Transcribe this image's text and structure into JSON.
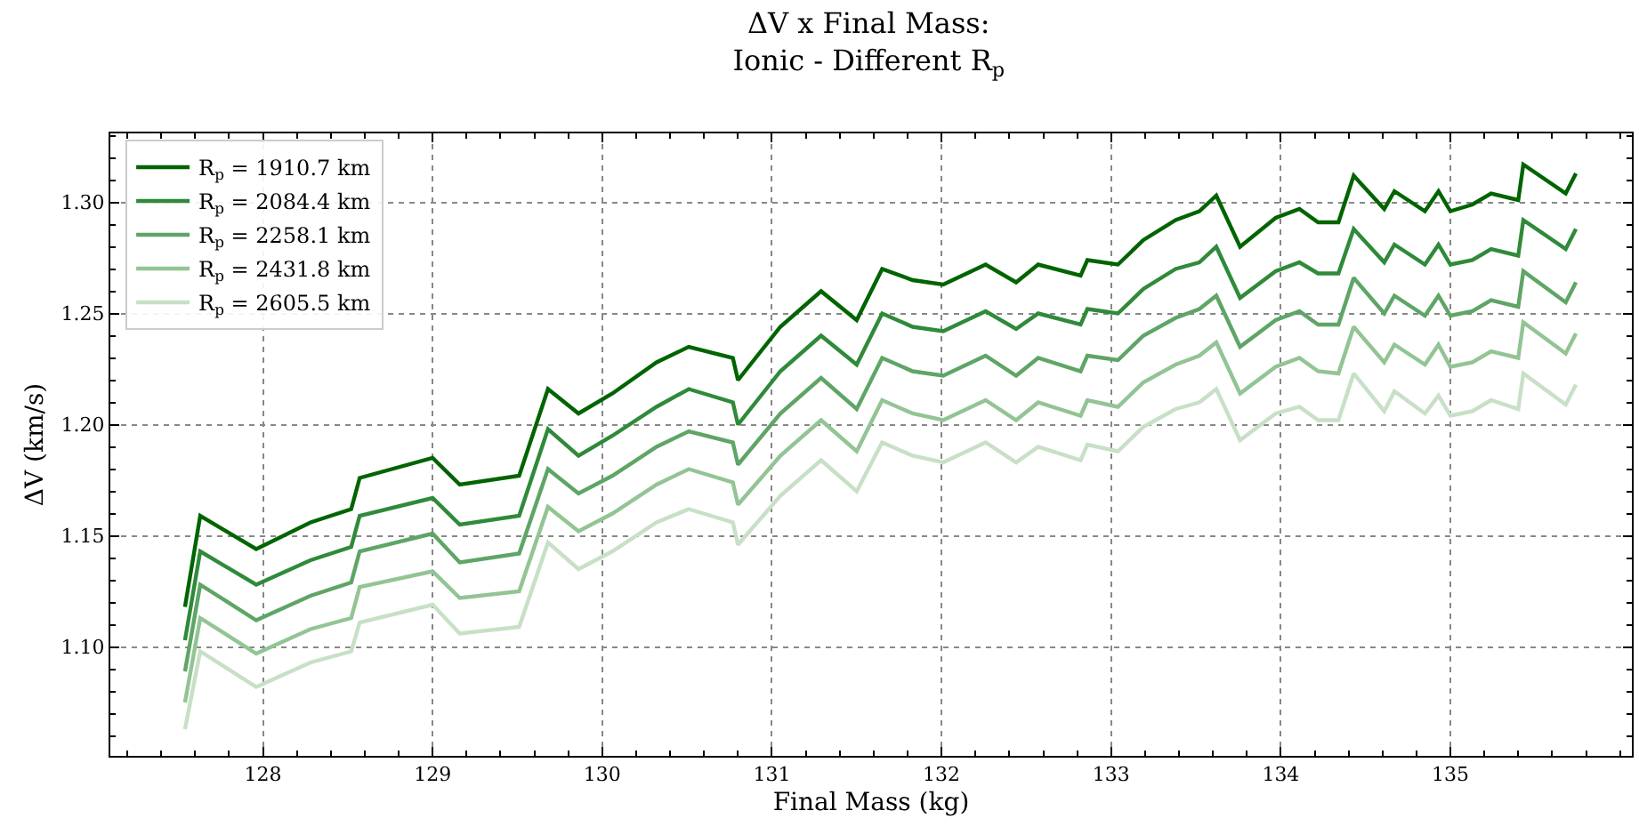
{
  "chart_data": {
    "type": "line",
    "title": "ΔV x Final Mass:\nIonic - Different R$_{p}$",
    "xlabel": "Final Mass (kg)",
    "ylabel": "ΔV (km/s)",
    "x": [
      127.54,
      127.63,
      127.96,
      128.28,
      128.52,
      128.57,
      129.0,
      129.16,
      129.51,
      129.68,
      129.86,
      130.06,
      130.32,
      130.51,
      130.77,
      130.8,
      131.05,
      131.29,
      131.5,
      131.65,
      131.83,
      132.01,
      132.26,
      132.44,
      132.57,
      132.82,
      132.86,
      133.04,
      133.19,
      133.38,
      133.52,
      133.62,
      133.76,
      133.97,
      134.11,
      134.22,
      134.34,
      134.43,
      134.61,
      134.67,
      134.85,
      134.93,
      135.0,
      135.13,
      135.24,
      135.4,
      135.43,
      135.68,
      135.74
    ],
    "series": [
      {
        "name": "R$_{p}$ = 1910.7 km",
        "color": "#006400",
        "values": [
          1.118,
          1.159,
          1.144,
          1.156,
          1.162,
          1.176,
          1.185,
          1.173,
          1.177,
          1.216,
          1.205,
          1.214,
          1.228,
          1.235,
          1.23,
          1.22,
          1.244,
          1.26,
          1.247,
          1.27,
          1.265,
          1.263,
          1.272,
          1.264,
          1.272,
          1.267,
          1.274,
          1.272,
          1.283,
          1.292,
          1.296,
          1.303,
          1.28,
          1.293,
          1.297,
          1.291,
          1.291,
          1.312,
          1.297,
          1.305,
          1.296,
          1.305,
          1.296,
          1.299,
          1.304,
          1.301,
          1.317,
          1.304,
          1.313
        ]
      },
      {
        "name": "R$_{p}$ = 2084.4 km",
        "color": "#2f8a3a",
        "values": [
          1.103,
          1.143,
          1.128,
          1.139,
          1.145,
          1.159,
          1.167,
          1.155,
          1.159,
          1.198,
          1.186,
          1.195,
          1.208,
          1.216,
          1.21,
          1.2,
          1.224,
          1.24,
          1.227,
          1.25,
          1.244,
          1.242,
          1.251,
          1.243,
          1.25,
          1.245,
          1.252,
          1.25,
          1.261,
          1.27,
          1.273,
          1.28,
          1.257,
          1.269,
          1.273,
          1.268,
          1.268,
          1.288,
          1.273,
          1.281,
          1.272,
          1.281,
          1.272,
          1.274,
          1.279,
          1.276,
          1.292,
          1.279,
          1.288
        ]
      },
      {
        "name": "R$_{p}$ = 2258.1 km",
        "color": "#5ea566",
        "values": [
          1.089,
          1.128,
          1.112,
          1.123,
          1.129,
          1.143,
          1.151,
          1.138,
          1.142,
          1.18,
          1.169,
          1.177,
          1.19,
          1.197,
          1.192,
          1.182,
          1.205,
          1.221,
          1.207,
          1.23,
          1.224,
          1.222,
          1.231,
          1.222,
          1.23,
          1.224,
          1.231,
          1.229,
          1.24,
          1.248,
          1.252,
          1.258,
          1.235,
          1.247,
          1.251,
          1.245,
          1.245,
          1.266,
          1.25,
          1.258,
          1.249,
          1.258,
          1.249,
          1.251,
          1.256,
          1.253,
          1.269,
          1.255,
          1.264
        ]
      },
      {
        "name": "R$_{p}$ = 2431.8 km",
        "color": "#93c494",
        "values": [
          1.075,
          1.113,
          1.097,
          1.108,
          1.113,
          1.127,
          1.134,
          1.122,
          1.125,
          1.163,
          1.152,
          1.16,
          1.173,
          1.18,
          1.174,
          1.164,
          1.186,
          1.202,
          1.188,
          1.211,
          1.205,
          1.202,
          1.211,
          1.202,
          1.21,
          1.204,
          1.211,
          1.208,
          1.219,
          1.227,
          1.231,
          1.237,
          1.214,
          1.226,
          1.23,
          1.224,
          1.223,
          1.244,
          1.228,
          1.236,
          1.227,
          1.236,
          1.226,
          1.228,
          1.233,
          1.23,
          1.246,
          1.232,
          1.241
        ]
      },
      {
        "name": "R$_{p}$ = 2605.5 km",
        "color": "#c7e0c6",
        "values": [
          1.063,
          1.098,
          1.082,
          1.093,
          1.098,
          1.111,
          1.119,
          1.106,
          1.109,
          1.147,
          1.135,
          1.143,
          1.156,
          1.162,
          1.156,
          1.146,
          1.168,
          1.184,
          1.17,
          1.192,
          1.186,
          1.183,
          1.192,
          1.183,
          1.19,
          1.184,
          1.191,
          1.188,
          1.199,
          1.207,
          1.21,
          1.216,
          1.193,
          1.205,
          1.208,
          1.202,
          1.202,
          1.223,
          1.206,
          1.215,
          1.205,
          1.213,
          1.204,
          1.206,
          1.211,
          1.207,
          1.223,
          1.209,
          1.218
        ]
      }
    ],
    "xlim": [
      127.1,
      136.07
    ],
    "ylim": [
      1.051,
      1.331
    ],
    "xticks": [
      128,
      129,
      130,
      131,
      132,
      133,
      134,
      135
    ],
    "yticks": [
      {
        "value": 1.1,
        "label": "1.10"
      },
      1.15,
      {
        "value": 1.2,
        "label": "1.20"
      },
      1.25,
      {
        "value": 1.3,
        "label": "1.30"
      }
    ],
    "grid": true,
    "legend": "top left",
    "line_style": "solid"
  }
}
